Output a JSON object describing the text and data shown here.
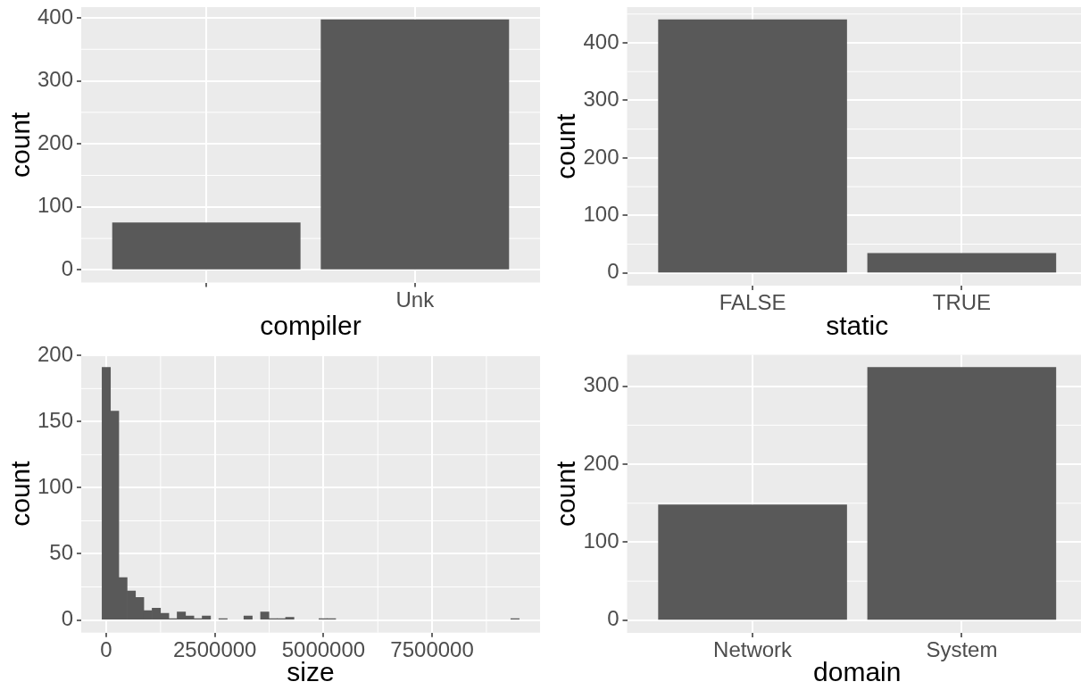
{
  "chart_data": [
    {
      "type": "bar",
      "xlabel": "compiler",
      "ylabel": "count",
      "categories": [
        null,
        "Unk"
      ],
      "values": [
        75,
        397
      ],
      "color": "#595959",
      "ylim": [
        -19.85,
        416.85
      ],
      "yticks": [
        0,
        100,
        200,
        300,
        400
      ],
      "grid": true
    },
    {
      "type": "bar",
      "xlabel": "static",
      "ylabel": "count",
      "categories": [
        "FALSE",
        "TRUE"
      ],
      "values": [
        440,
        34
      ],
      "color": "#595959",
      "ylim": [
        -22,
        462
      ],
      "yticks": [
        0,
        100,
        200,
        300,
        400
      ],
      "grid": true
    },
    {
      "type": "histogram",
      "xlabel": "size",
      "ylabel": "count",
      "bins": [
        -96000,
        96000,
        288000,
        480000,
        672000,
        864000,
        1056000,
        1248000,
        1440000,
        1632000,
        1824000,
        2016000,
        2208000,
        2400000,
        2592000,
        2784000,
        2976000,
        3168000,
        3360000,
        3552000,
        3744000,
        3936000,
        4128000,
        4320000,
        4512000,
        4704000,
        4896000,
        5088000,
        5280000,
        5472000,
        5664000,
        5856000,
        6048000,
        6240000,
        6432000,
        6624000,
        6816000,
        7008000,
        7200000,
        7392000,
        7584000,
        7776000,
        7968000,
        8160000,
        8352000,
        8544000,
        8736000,
        8928000,
        9120000,
        9312000,
        9504000
      ],
      "values": [
        191,
        158,
        32,
        22,
        17,
        7,
        9,
        5,
        1,
        6,
        3,
        1,
        3,
        0,
        1,
        0,
        0,
        3,
        0,
        6,
        1,
        1,
        2,
        0,
        0,
        0,
        1,
        1,
        0,
        0,
        0,
        0,
        0,
        0,
        0,
        0,
        0,
        0,
        0,
        0,
        0,
        0,
        0,
        0,
        0,
        0,
        0,
        0,
        0,
        1
      ],
      "color": "#595959",
      "xlim": [
        -576000,
        9984000
      ],
      "xticks": [
        0,
        2500000,
        5000000,
        7500000
      ],
      "ylim": [
        -9.55,
        200.55
      ],
      "yticks": [
        0,
        50,
        100,
        150,
        200
      ],
      "grid": true
    },
    {
      "type": "bar",
      "xlabel": "domain",
      "ylabel": "count",
      "categories": [
        "Network",
        "System"
      ],
      "values": [
        148,
        324
      ],
      "color": "#595959",
      "ylim": [
        -16.2,
        340.2
      ],
      "yticks": [
        0,
        100,
        200,
        300
      ],
      "grid": true
    }
  ]
}
